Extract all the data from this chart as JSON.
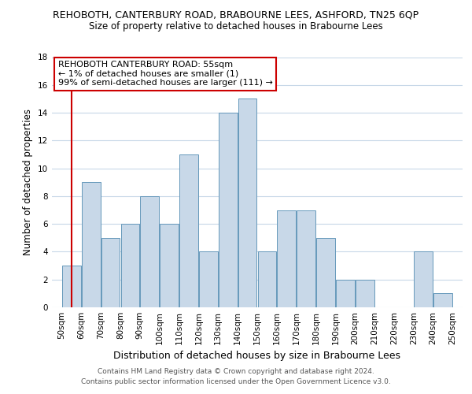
{
  "title": "REHOBOTH, CANTERBURY ROAD, BRABOURNE LEES, ASHFORD, TN25 6QP",
  "subtitle": "Size of property relative to detached houses in Brabourne Lees",
  "xlabel": "Distribution of detached houses by size in Brabourne Lees",
  "ylabel": "Number of detached properties",
  "bar_left_edges": [
    50,
    60,
    70,
    80,
    90,
    100,
    110,
    120,
    130,
    140,
    150,
    160,
    170,
    180,
    190,
    200,
    210,
    220,
    230,
    240
  ],
  "bar_heights": [
    3,
    9,
    5,
    6,
    8,
    6,
    11,
    4,
    14,
    15,
    4,
    7,
    7,
    5,
    2,
    2,
    0,
    0,
    4,
    1
  ],
  "bin_width": 10,
  "bar_color": "#c8d8e8",
  "bar_edge_color": "#6699bb",
  "ylim": [
    0,
    18
  ],
  "yticks": [
    0,
    2,
    4,
    6,
    8,
    10,
    12,
    14,
    16,
    18
  ],
  "xtick_labels": [
    "50sqm",
    "60sqm",
    "70sqm",
    "80sqm",
    "90sqm",
    "100sqm",
    "110sqm",
    "120sqm",
    "130sqm",
    "140sqm",
    "150sqm",
    "160sqm",
    "170sqm",
    "180sqm",
    "190sqm",
    "200sqm",
    "210sqm",
    "220sqm",
    "230sqm",
    "240sqm",
    "250sqm"
  ],
  "xtick_positions": [
    50,
    60,
    70,
    80,
    90,
    100,
    110,
    120,
    130,
    140,
    150,
    160,
    170,
    180,
    190,
    200,
    210,
    220,
    230,
    240,
    250
  ],
  "annotation_title": "REHOBOTH CANTERBURY ROAD: 55sqm",
  "annotation_line2": "← 1% of detached houses are smaller (1)",
  "annotation_line3": "99% of semi-detached houses are larger (111) →",
  "ref_line_x": 55,
  "ref_line_color": "#cc0000",
  "annotation_box_color": "#ffffff",
  "annotation_box_edge": "#cc0000",
  "footer1": "Contains HM Land Registry data © Crown copyright and database right 2024.",
  "footer2": "Contains public sector information licensed under the Open Government Licence v3.0.",
  "background_color": "#ffffff",
  "grid_color": "#c8d8e8",
  "title_fontsize": 9,
  "subtitle_fontsize": 8.5,
  "ylabel_fontsize": 8.5,
  "xlabel_fontsize": 9,
  "tick_fontsize": 7.5,
  "annotation_fontsize": 8,
  "footer_fontsize": 6.5
}
